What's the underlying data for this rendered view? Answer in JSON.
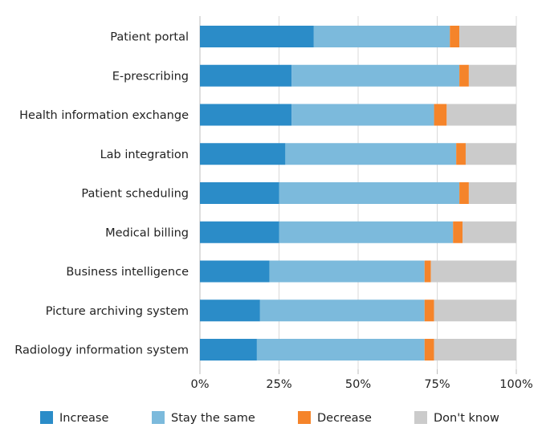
{
  "chart_data": {
    "type": "bar",
    "orientation": "horizontal",
    "stacked": true,
    "categories": [
      "Patient portal",
      "E-prescribing",
      "Health information exchange",
      "Lab integration",
      "Patient scheduling",
      "Medical billing",
      "Business intelligence",
      "Picture archiving system",
      "Radiology information system"
    ],
    "series": [
      {
        "name": "Increase",
        "color": "#2b8cc8",
        "values": [
          36,
          29,
          29,
          27,
          25,
          25,
          22,
          19,
          18
        ]
      },
      {
        "name": "Stay the same",
        "color": "#7cbadc",
        "values": [
          43,
          53,
          45,
          54,
          57,
          55,
          49,
          52,
          53
        ]
      },
      {
        "name": "Decrease",
        "color": "#f5842a",
        "values": [
          3,
          3,
          4,
          3,
          3,
          3,
          2,
          3,
          3
        ]
      },
      {
        "name": "Don't know",
        "color": "#cbcbcb",
        "values": [
          18,
          15,
          22,
          16,
          15,
          17,
          27,
          26,
          26
        ]
      }
    ],
    "xlim": [
      0,
      100
    ],
    "xticks": [
      "0%",
      "25%",
      "50%",
      "75%",
      "100%"
    ],
    "grid": true,
    "legend_position": "bottom",
    "title": "",
    "xlabel": "",
    "ylabel": ""
  }
}
